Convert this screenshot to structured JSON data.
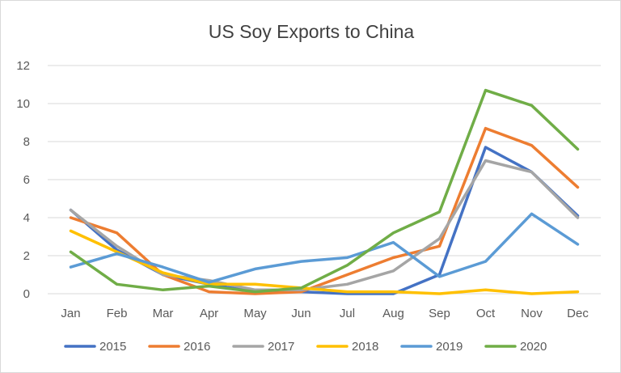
{
  "chart_data": {
    "type": "line",
    "title": "US Soy Exports to China",
    "xlabel": "",
    "ylabel": "",
    "categories": [
      "Jan",
      "Feb",
      "Mar",
      "Apr",
      "May",
      "Jun",
      "Jul",
      "Aug",
      "Sep",
      "Oct",
      "Nov",
      "Dec"
    ],
    "ylim": [
      0,
      12
    ],
    "yticks": [
      0,
      2,
      4,
      6,
      8,
      10,
      12
    ],
    "grid": true,
    "legend_position": "bottom",
    "series": [
      {
        "name": "2015",
        "color": "#4472C4",
        "values": [
          4.4,
          2.3,
          1.0,
          0.5,
          0.1,
          0.1,
          0.0,
          0.0,
          1.0,
          7.7,
          6.4,
          4.1
        ]
      },
      {
        "name": "2016",
        "color": "#ED7D31",
        "values": [
          4.0,
          3.2,
          1.0,
          0.1,
          0.0,
          0.1,
          1.0,
          1.9,
          2.5,
          8.7,
          7.8,
          5.6
        ]
      },
      {
        "name": "2017",
        "color": "#A5A5A5",
        "values": [
          4.4,
          2.5,
          1.0,
          0.7,
          0.2,
          0.2,
          0.5,
          1.2,
          2.9,
          7.0,
          6.4,
          4.0
        ]
      },
      {
        "name": "2018",
        "color": "#FFC000",
        "values": [
          3.3,
          2.2,
          1.1,
          0.5,
          0.5,
          0.3,
          0.1,
          0.1,
          0.0,
          0.2,
          0.0,
          0.1
        ]
      },
      {
        "name": "2019",
        "color": "#5B9BD5",
        "values": [
          1.4,
          2.1,
          1.4,
          0.6,
          1.3,
          1.7,
          1.9,
          2.7,
          0.9,
          1.7,
          4.2,
          2.6
        ]
      },
      {
        "name": "2020",
        "color": "#70AD47",
        "values": [
          2.2,
          0.5,
          0.2,
          0.4,
          0.1,
          0.3,
          1.5,
          3.2,
          4.3,
          10.7,
          9.9,
          7.6
        ]
      }
    ]
  }
}
